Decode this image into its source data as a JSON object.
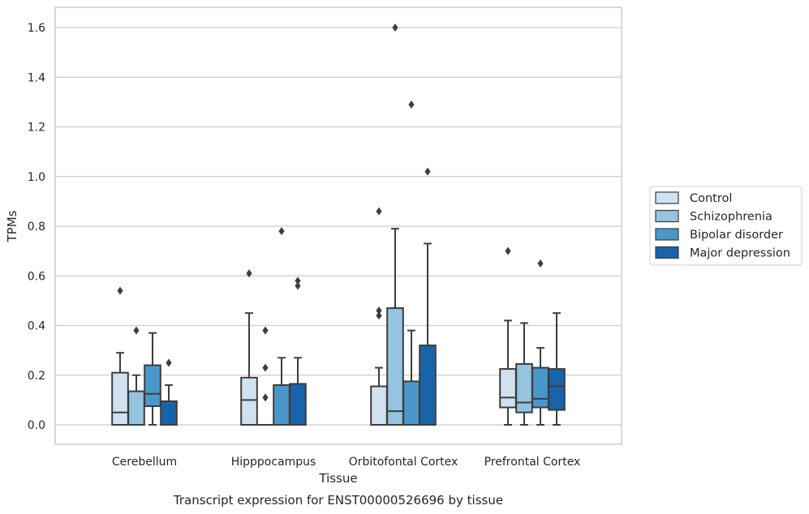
{
  "chart_data": {
    "type": "box",
    "title": "",
    "caption": "Transcript expression for ENST00000526696 by tissue",
    "xlabel": "Tissue",
    "ylabel": "TPMs",
    "ylim": [
      -0.08,
      1.68
    ],
    "yticks": [
      "0.0",
      "0.2",
      "0.4",
      "0.6",
      "0.8",
      "1.0",
      "1.2",
      "1.4",
      "1.6"
    ],
    "ytick_values": [
      0,
      0.2,
      0.4,
      0.6,
      0.8,
      1.0,
      1.2,
      1.4,
      1.6
    ],
    "grid": "horizontal",
    "legend_position": "right",
    "categories": [
      "Cerebellum",
      "Hipppocampus",
      "Orbitofontal Cortex",
      "Prefrontal Cortex"
    ],
    "series": [
      {
        "name": "Control",
        "color": "#d0e1f2",
        "boxes": [
          {
            "whislo": 0.0,
            "q1": 0.0,
            "med": 0.05,
            "q3": 0.21,
            "whishi": 0.29,
            "fliers": [
              0.54
            ]
          },
          {
            "whislo": 0.0,
            "q1": 0.0,
            "med": 0.1,
            "q3": 0.19,
            "whishi": 0.45,
            "fliers": [
              0.61
            ]
          },
          {
            "whislo": 0.0,
            "q1": 0.0,
            "med": 0.0,
            "q3": 0.155,
            "whishi": 0.23,
            "fliers": [
              0.44,
              0.46,
              0.86
            ]
          },
          {
            "whislo": 0.0,
            "q1": 0.07,
            "med": 0.11,
            "q3": 0.225,
            "whishi": 0.42,
            "fliers": [
              0.7
            ]
          }
        ]
      },
      {
        "name": "Schizophrenia",
        "color": "#94c4df",
        "boxes": [
          {
            "whislo": 0.0,
            "q1": 0.0,
            "med": 0.0,
            "q3": 0.135,
            "whishi": 0.2,
            "fliers": [
              0.38
            ]
          },
          {
            "whislo": 0.0,
            "q1": 0.0,
            "med": 0.0,
            "q3": 0.0,
            "whishi": 0.0,
            "fliers": [
              0.11,
              0.23,
              0.38
            ]
          },
          {
            "whislo": 0.0,
            "q1": 0.0,
            "med": 0.055,
            "q3": 0.47,
            "whishi": 0.79,
            "fliers": [
              1.6
            ]
          },
          {
            "whislo": 0.0,
            "q1": 0.05,
            "med": 0.09,
            "q3": 0.245,
            "whishi": 0.41,
            "fliers": []
          }
        ]
      },
      {
        "name": "Bipolar disorder",
        "color": "#4a98c9",
        "boxes": [
          {
            "whislo": 0.0,
            "q1": 0.075,
            "med": 0.125,
            "q3": 0.24,
            "whishi": 0.37,
            "fliers": []
          },
          {
            "whislo": 0.0,
            "q1": 0.0,
            "med": 0.0,
            "q3": 0.16,
            "whishi": 0.27,
            "fliers": [
              0.78
            ]
          },
          {
            "whislo": 0.0,
            "q1": 0.0,
            "med": 0.0,
            "q3": 0.175,
            "whishi": 0.38,
            "fliers": [
              1.29
            ]
          },
          {
            "whislo": 0.0,
            "q1": 0.07,
            "med": 0.105,
            "q3": 0.23,
            "whishi": 0.31,
            "fliers": [
              0.65
            ]
          }
        ]
      },
      {
        "name": "Major depression",
        "color": "#1764ab",
        "boxes": [
          {
            "whislo": 0.0,
            "q1": 0.0,
            "med": 0.0,
            "q3": 0.095,
            "whishi": 0.16,
            "fliers": [
              0.25
            ]
          },
          {
            "whislo": 0.0,
            "q1": 0.0,
            "med": 0.0,
            "q3": 0.165,
            "whishi": 0.27,
            "fliers": [
              0.56,
              0.58
            ]
          },
          {
            "whislo": 0.0,
            "q1": 0.0,
            "med": 0.0,
            "q3": 0.32,
            "whishi": 0.73,
            "fliers": [
              1.02
            ]
          },
          {
            "whislo": 0.0,
            "q1": 0.06,
            "med": 0.155,
            "q3": 0.225,
            "whishi": 0.45,
            "fliers": []
          }
        ]
      }
    ]
  }
}
